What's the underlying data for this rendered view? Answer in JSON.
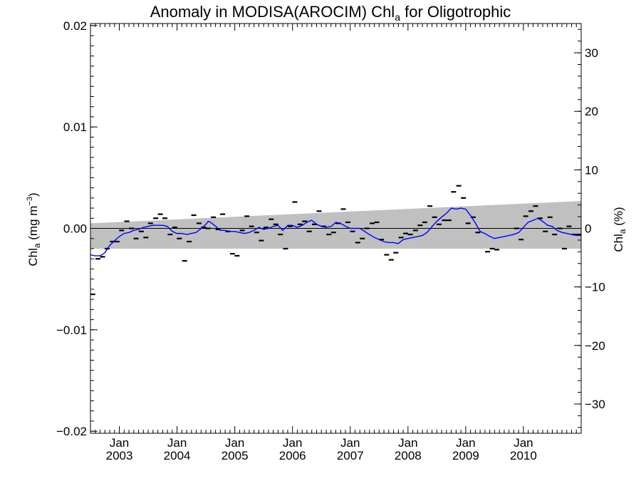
{
  "chart_data": {
    "type": "line",
    "title": {
      "prefix": "Anomaly in MODISA(AROCIM) Chl",
      "subscript": "a",
      "suffix": " for Oligotrophic"
    },
    "ylabel_left": {
      "prefix": "Chl",
      "subscript": "a",
      "suffix": " (mg m",
      "superscript": "−3",
      "close": ")"
    },
    "ylabel_right": {
      "prefix": "Chl",
      "subscript": "a",
      "suffix": " (%)"
    },
    "x_range": [
      2002.5,
      2011.0
    ],
    "y_range_left": [
      -0.0202,
      0.0202
    ],
    "y_range_right": [
      -35,
      35
    ],
    "x_ticks": [
      {
        "x": 2003.0,
        "month": "Jan",
        "year": "2003"
      },
      {
        "x": 2004.0,
        "month": "Jan",
        "year": "2004"
      },
      {
        "x": 2005.0,
        "month": "Jan",
        "year": "2005"
      },
      {
        "x": 2006.0,
        "month": "Jan",
        "year": "2006"
      },
      {
        "x": 2007.0,
        "month": "Jan",
        "year": "2007"
      },
      {
        "x": 2008.0,
        "month": "Jan",
        "year": "2008"
      },
      {
        "x": 2009.0,
        "month": "Jan",
        "year": "2009"
      },
      {
        "x": 2010.0,
        "month": "Jan",
        "year": "2010"
      }
    ],
    "y_ticks_left": [
      {
        "v": 0.02,
        "label": "0.02"
      },
      {
        "v": 0.01,
        "label": "0.01"
      },
      {
        "v": 0.0,
        "label": "0.00"
      },
      {
        "v": -0.01,
        "label": "−0.01"
      },
      {
        "v": -0.02,
        "label": "−0.02"
      }
    ],
    "y_ticks_right": [
      {
        "v": 30,
        "label": "30"
      },
      {
        "v": 20,
        "label": "20"
      },
      {
        "v": 10,
        "label": "10"
      },
      {
        "v": 0,
        "label": "0"
      },
      {
        "v": -10,
        "label": "−10"
      },
      {
        "v": -20,
        "label": "−20"
      },
      {
        "v": -30,
        "label": "−30"
      }
    ],
    "band": {
      "start": [
        2002.5,
        0.0005,
        -0.002
      ],
      "end": [
        2011.0,
        0.0027,
        -0.002
      ]
    },
    "monthly_anomaly": [
      [
        2002.54,
        -0.0065
      ],
      [
        2002.63,
        -0.003
      ],
      [
        2002.71,
        -0.0028
      ],
      [
        2002.79,
        -0.002
      ],
      [
        2002.88,
        -0.0013
      ],
      [
        2002.96,
        -0.0013
      ],
      [
        2003.04,
        -0.0002
      ],
      [
        2003.13,
        0.0007
      ],
      [
        2003.21,
        0.0
      ],
      [
        2003.29,
        -0.001
      ],
      [
        2003.38,
        -0.0003
      ],
      [
        2003.46,
        -0.0009
      ],
      [
        2003.54,
        0.0005
      ],
      [
        2003.63,
        0.001
      ],
      [
        2003.71,
        0.0014
      ],
      [
        2003.79,
        0.001
      ],
      [
        2003.88,
        -0.0006
      ],
      [
        2003.96,
        0.0001
      ],
      [
        2004.04,
        -0.001
      ],
      [
        2004.13,
        -0.0032
      ],
      [
        2004.21,
        -0.0013
      ],
      [
        2004.29,
        0.0013
      ],
      [
        2004.38,
        0.0005
      ],
      [
        2004.46,
        0.0001
      ],
      [
        2004.54,
        0.0
      ],
      [
        2004.63,
        0.0011
      ],
      [
        2004.71,
        -0.0001
      ],
      [
        2004.79,
        0.0014
      ],
      [
        2004.88,
        -0.0003
      ],
      [
        2004.96,
        -0.0025
      ],
      [
        2005.04,
        -0.0027
      ],
      [
        2005.13,
        -0.0002
      ],
      [
        2005.21,
        0.0012
      ],
      [
        2005.29,
        0.0002
      ],
      [
        2005.38,
        -0.0004
      ],
      [
        2005.46,
        -0.0012
      ],
      [
        2005.54,
        0.0001
      ],
      [
        2005.63,
        0.0009
      ],
      [
        2005.71,
        0.0004
      ],
      [
        2005.79,
        -0.0006
      ],
      [
        2005.88,
        -0.002
      ],
      [
        2005.96,
        0.0002
      ],
      [
        2006.04,
        0.0026
      ],
      [
        2006.13,
        0.0004
      ],
      [
        2006.21,
        0.0007
      ],
      [
        2006.29,
        -0.0003
      ],
      [
        2006.38,
        0.0004
      ],
      [
        2006.46,
        0.0017
      ],
      [
        2006.54,
        0.0002
      ],
      [
        2006.63,
        -0.0006
      ],
      [
        2006.71,
        -0.0004
      ],
      [
        2006.79,
        0.0005
      ],
      [
        2006.88,
        0.0019
      ],
      [
        2006.96,
        0.0006
      ],
      [
        2007.04,
        -0.0003
      ],
      [
        2007.13,
        -0.0014
      ],
      [
        2007.21,
        -0.001
      ],
      [
        2007.29,
        0.0
      ],
      [
        2007.38,
        0.0005
      ],
      [
        2007.46,
        0.0006
      ],
      [
        2007.54,
        -0.0011
      ],
      [
        2007.63,
        -0.0026
      ],
      [
        2007.71,
        -0.0031
      ],
      [
        2007.79,
        -0.0024
      ],
      [
        2007.88,
        -0.0009
      ],
      [
        2007.96,
        -0.0005
      ],
      [
        2008.04,
        -0.0006
      ],
      [
        2008.13,
        -0.0002
      ],
      [
        2008.21,
        0.0003
      ],
      [
        2008.29,
        0.0006
      ],
      [
        2008.38,
        0.0022
      ],
      [
        2008.46,
        0.0011
      ],
      [
        2008.54,
        0.0004
      ],
      [
        2008.63,
        0.0008
      ],
      [
        2008.71,
        0.0008
      ],
      [
        2008.79,
        0.0036
      ],
      [
        2008.88,
        0.0042
      ],
      [
        2008.96,
        0.003
      ],
      [
        2009.04,
        0.0005
      ],
      [
        2009.13,
        0.0011
      ],
      [
        2009.21,
        -0.0004
      ],
      [
        2009.38,
        -0.0023
      ],
      [
        2009.46,
        -0.002
      ],
      [
        2009.54,
        -0.0021
      ],
      [
        2009.88,
        0.0
      ],
      [
        2009.96,
        -0.0011
      ],
      [
        2010.04,
        0.0012
      ],
      [
        2010.13,
        0.0017
      ],
      [
        2010.21,
        0.0022
      ],
      [
        2010.29,
        0.001
      ],
      [
        2010.38,
        -0.0003
      ],
      [
        2010.46,
        0.0011
      ],
      [
        2010.54,
        -0.0006
      ],
      [
        2010.63,
        0.0
      ],
      [
        2010.71,
        -0.002
      ],
      [
        2010.79,
        0.0002
      ],
      [
        2010.88,
        -0.0006
      ],
      [
        2010.96,
        -0.0006
      ]
    ],
    "running_mean": [
      [
        2002.5,
        -0.0026
      ],
      [
        2002.58,
        -0.0027
      ],
      [
        2002.67,
        -0.0027
      ],
      [
        2002.75,
        -0.0024
      ],
      [
        2002.83,
        -0.0017
      ],
      [
        2002.92,
        -0.0012
      ],
      [
        2003.0,
        -0.0008
      ],
      [
        2003.08,
        -0.0005
      ],
      [
        2003.17,
        -0.0004
      ],
      [
        2003.25,
        -0.0002
      ],
      [
        2003.33,
        -0.0001
      ],
      [
        2003.42,
        0.0001
      ],
      [
        2003.5,
        0.0002
      ],
      [
        2003.58,
        0.0003
      ],
      [
        2003.67,
        0.0003
      ],
      [
        2003.75,
        0.0003
      ],
      [
        2003.83,
        0.0002
      ],
      [
        2003.92,
        -0.0003
      ],
      [
        2004.0,
        -0.0005
      ],
      [
        2004.08,
        -0.0005
      ],
      [
        2004.17,
        -0.0006
      ],
      [
        2004.25,
        -0.0005
      ],
      [
        2004.33,
        -0.0004
      ],
      [
        2004.42,
        0.0
      ],
      [
        2004.5,
        0.0004
      ],
      [
        2004.54,
        0.0007
      ],
      [
        2004.58,
        0.0006
      ],
      [
        2004.67,
        0.0002
      ],
      [
        2004.75,
        -0.0002
      ],
      [
        2004.83,
        -0.0002
      ],
      [
        2004.92,
        -0.0003
      ],
      [
        2005.0,
        -0.0003
      ],
      [
        2005.08,
        -0.0004
      ],
      [
        2005.17,
        -0.0005
      ],
      [
        2005.25,
        -0.0004
      ],
      [
        2005.33,
        -0.0002
      ],
      [
        2005.42,
        0.0001
      ],
      [
        2005.5,
        -0.0001
      ],
      [
        2005.58,
        0.0
      ],
      [
        2005.67,
        0.0002
      ],
      [
        2005.75,
        0.0003
      ],
      [
        2005.83,
        -0.0002
      ],
      [
        2005.92,
        0.0003
      ],
      [
        2006.0,
        0.0003
      ],
      [
        2006.08,
        0.0001
      ],
      [
        2006.17,
        0.0003
      ],
      [
        2006.25,
        0.0006
      ],
      [
        2006.33,
        0.0008
      ],
      [
        2006.42,
        0.0004
      ],
      [
        2006.5,
        0.0002
      ],
      [
        2006.58,
        0.0001
      ],
      [
        2006.67,
        0.0002
      ],
      [
        2006.75,
        0.0006
      ],
      [
        2006.83,
        0.0005
      ],
      [
        2006.92,
        0.0002
      ],
      [
        2007.0,
        0.0
      ],
      [
        2007.08,
        0.0
      ],
      [
        2007.17,
        0.0
      ],
      [
        2007.25,
        -0.0003
      ],
      [
        2007.33,
        -0.0006
      ],
      [
        2007.42,
        -0.0009
      ],
      [
        2007.5,
        -0.0011
      ],
      [
        2007.58,
        -0.0013
      ],
      [
        2007.67,
        -0.0014
      ],
      [
        2007.75,
        -0.0014
      ],
      [
        2007.83,
        -0.0015
      ],
      [
        2007.92,
        -0.0011
      ],
      [
        2008.0,
        -0.001
      ],
      [
        2008.08,
        -0.0009
      ],
      [
        2008.17,
        -0.0008
      ],
      [
        2008.25,
        -0.0007
      ],
      [
        2008.33,
        -0.0004
      ],
      [
        2008.42,
        0.0002
      ],
      [
        2008.5,
        0.0007
      ],
      [
        2008.58,
        0.0011
      ],
      [
        2008.67,
        0.0015
      ],
      [
        2008.75,
        0.002
      ],
      [
        2008.83,
        0.0019
      ],
      [
        2008.92,
        0.002
      ],
      [
        2009.0,
        0.0019
      ],
      [
        2009.08,
        0.0013
      ],
      [
        2009.17,
        0.0005
      ],
      [
        2009.25,
        -0.0003
      ],
      [
        2009.33,
        -0.0005
      ],
      [
        2009.42,
        -0.0008
      ],
      [
        2009.5,
        -0.001
      ],
      [
        2009.58,
        -0.0009
      ],
      [
        2009.67,
        -0.0008
      ],
      [
        2009.75,
        -0.0007
      ],
      [
        2009.83,
        -0.0006
      ],
      [
        2009.92,
        -0.0004
      ],
      [
        2010.0,
        0.0001
      ],
      [
        2010.08,
        0.0006
      ],
      [
        2010.17,
        0.0008
      ],
      [
        2010.25,
        0.001
      ],
      [
        2010.33,
        0.0007
      ],
      [
        2010.42,
        0.0003
      ],
      [
        2010.5,
        0.0002
      ],
      [
        2010.58,
        -0.0002
      ],
      [
        2010.67,
        -0.0004
      ],
      [
        2010.75,
        -0.0005
      ],
      [
        2010.83,
        -0.0006
      ],
      [
        2010.92,
        -0.0007
      ],
      [
        2011.0,
        -0.0007
      ]
    ],
    "colors": {
      "band": "#c0c0c0",
      "running_mean": "#0000ff",
      "markers": "#000000",
      "zero_line": "#000000"
    },
    "grid": false
  }
}
